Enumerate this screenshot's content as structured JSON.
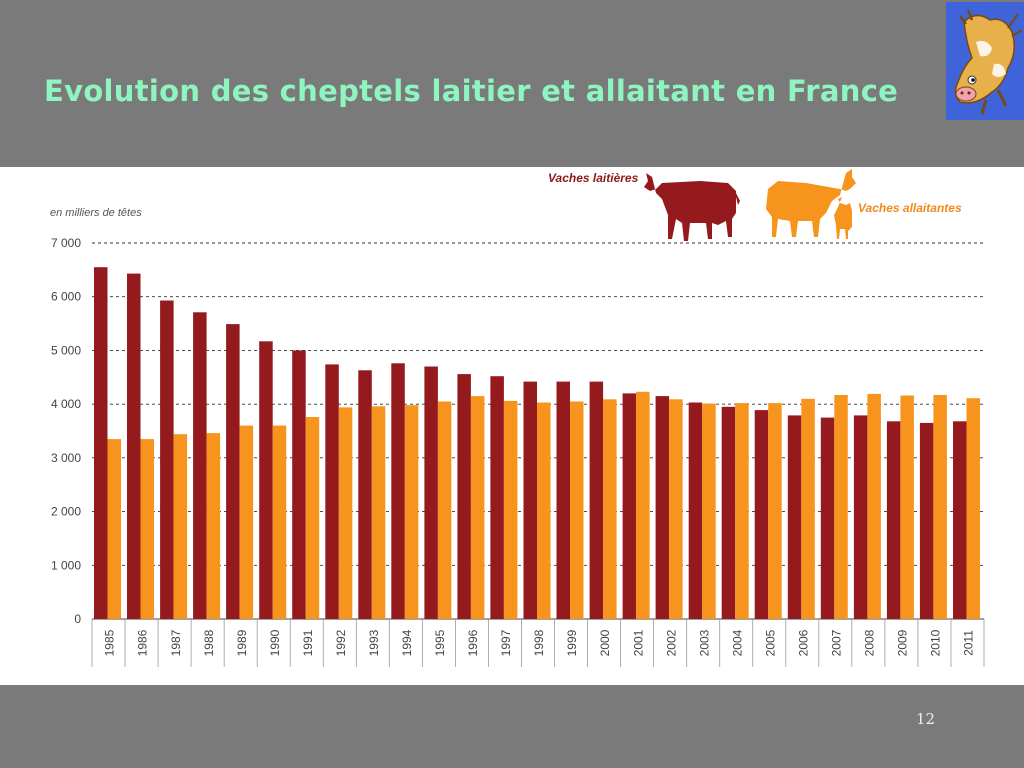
{
  "slide": {
    "title": "Evolution des cheptels laitier et allaitant en France",
    "page_number": "12"
  },
  "logo": {
    "icon": "cartoon-cow-logo-icon"
  },
  "colors": {
    "dairy": "#941a1d",
    "suckler": "#f7941e",
    "title": "#8ff5c0",
    "background": "#7a7a7a"
  },
  "chart_data": {
    "type": "bar",
    "unit_label": "en milliers de têtes",
    "categories": [
      "1985",
      "1986",
      "1987",
      "1988",
      "1989",
      "1990",
      "1991",
      "1992",
      "1993",
      "1994",
      "1995",
      "1996",
      "1997",
      "1998",
      "1999",
      "2000",
      "2001",
      "2002",
      "2003",
      "2004",
      "2005",
      "2006",
      "2007",
      "2008",
      "2009",
      "2010",
      "2011"
    ],
    "series": [
      {
        "name": "Vaches laitières",
        "color": "#941a1d",
        "icon": "dairy-cow-icon",
        "values": [
          6550,
          6430,
          5930,
          5710,
          5490,
          5170,
          5000,
          4740,
          4630,
          4760,
          4700,
          4560,
          4520,
          4420,
          4420,
          4420,
          4200,
          4150,
          4030,
          3950,
          3890,
          3790,
          3750,
          3790,
          3680,
          3650,
          3680
        ]
      },
      {
        "name": "Vaches allaitantes",
        "color": "#f7941e",
        "icon": "suckler-cow-with-calf-icon",
        "values": [
          3350,
          3350,
          3440,
          3460,
          3600,
          3600,
          3760,
          3940,
          3960,
          3980,
          4050,
          4150,
          4060,
          4030,
          4050,
          4090,
          4230,
          4090,
          4010,
          4020,
          4020,
          4100,
          4170,
          4190,
          4160,
          4170,
          4110
        ]
      }
    ],
    "yticks": [
      "0",
      "1 000",
      "2 000",
      "3 000",
      "4 000",
      "5 000",
      "6 000",
      "7 000"
    ],
    "ylim": [
      0,
      7000
    ],
    "grid": "dashed horizontal",
    "legend_position": "top-right"
  }
}
